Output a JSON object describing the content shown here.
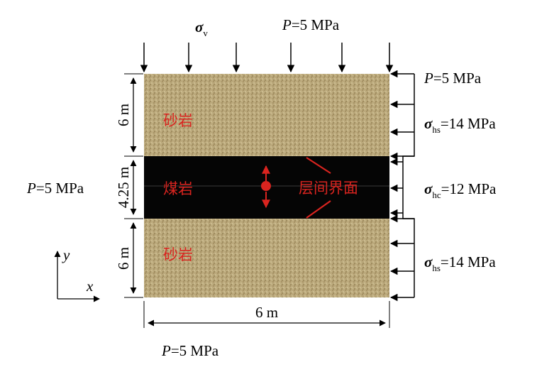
{
  "top_load": {
    "sigma_symbol": "σ",
    "sigma_sub": "v",
    "p_symbol": "P",
    "p_value": "=5 MPa"
  },
  "right_loads": {
    "top_p_symbol": "P",
    "top_p_value": "=5 MPa",
    "upper": {
      "symbol": "σ",
      "sub": "hs",
      "value": "=14 MPa"
    },
    "middle": {
      "symbol": "σ",
      "sub": "hc",
      "value": "=12 MPa"
    },
    "lower": {
      "symbol": "σ",
      "sub": "hs",
      "value": "=14 MPa"
    }
  },
  "left_load": {
    "symbol": "P",
    "value": "=5 MPa"
  },
  "bottom_load": {
    "symbol": "P",
    "value": "=5 MPa"
  },
  "layers": {
    "upper_sandstone": "砂岩",
    "coal": "煤岩",
    "lower_sandstone": "砂岩"
  },
  "interface_label": "层间界面",
  "dimensions": {
    "upper": "6 m",
    "coal": "4.25 m",
    "lower": "6 m",
    "width": "6 m"
  },
  "axes": {
    "y": "y",
    "x": "x"
  },
  "colors": {
    "sandstone": "#b8a67a",
    "coal": "#050505",
    "label_red": "#d9241f"
  }
}
